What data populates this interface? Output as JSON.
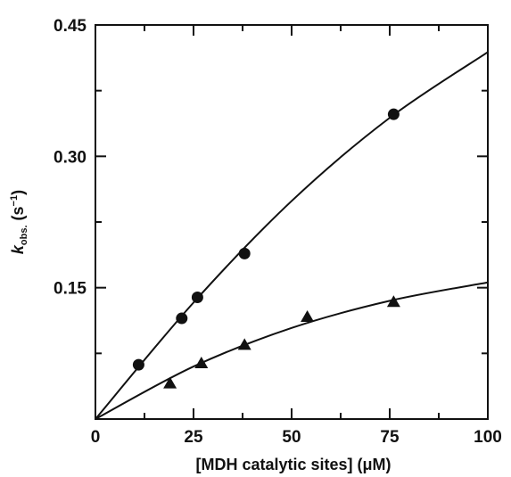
{
  "chart_data": {
    "type": "scatter",
    "xlabel": "[MDH catalytic sites] (μM)",
    "ylabel": {
      "main": "k",
      "subscript": "obs.",
      "unit_open": " (s",
      "unit_sup": "−1",
      "unit_close": ")"
    },
    "xlim": [
      0,
      100
    ],
    "ylim": [
      0,
      0.45
    ],
    "x_ticks": [
      0,
      25,
      50,
      75,
      100
    ],
    "x_tick_labels": [
      "0",
      "25",
      "50",
      "75",
      "100"
    ],
    "y_ticks": [
      0.15,
      0.3,
      0.45
    ],
    "y_tick_labels": [
      "0.15",
      "0.30",
      "0.45"
    ],
    "grid": false,
    "series": [
      {
        "marker": "circle",
        "points": [
          {
            "x": 11,
            "y": 0.062
          },
          {
            "x": 22,
            "y": 0.115
          },
          {
            "x": 26,
            "y": 0.139
          },
          {
            "x": 38,
            "y": 0.189
          },
          {
            "x": 76,
            "y": 0.348
          }
        ],
        "fit_curve": [
          {
            "x": 0,
            "y": 0
          },
          {
            "x": 25,
            "y": 0.133
          },
          {
            "x": 50,
            "y": 0.249
          },
          {
            "x": 75,
            "y": 0.344
          },
          {
            "x": 100,
            "y": 0.419
          }
        ]
      },
      {
        "marker": "triangle",
        "points": [
          {
            "x": 19,
            "y": 0.04
          },
          {
            "x": 27,
            "y": 0.063
          },
          {
            "x": 38,
            "y": 0.084
          },
          {
            "x": 54,
            "y": 0.116
          },
          {
            "x": 76,
            "y": 0.133
          }
        ],
        "fit_curve": [
          {
            "x": 0,
            "y": 0
          },
          {
            "x": 25,
            "y": 0.06
          },
          {
            "x": 50,
            "y": 0.104
          },
          {
            "x": 75,
            "y": 0.135
          },
          {
            "x": 100,
            "y": 0.156
          }
        ]
      }
    ]
  }
}
